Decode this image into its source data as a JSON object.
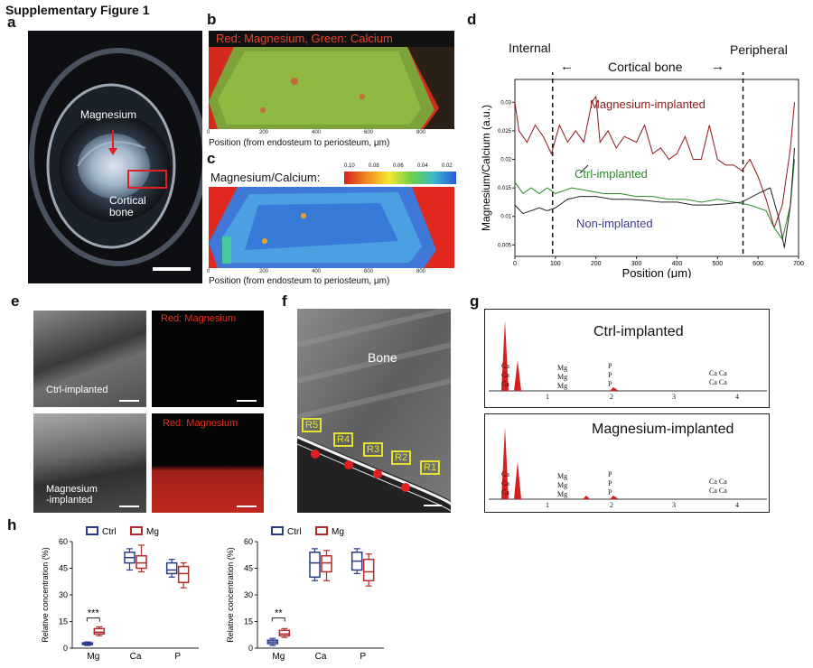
{
  "figure_title": "Supplementary Figure 1",
  "panels": {
    "a": {
      "letter": "a",
      "label_magnesium": "Magnesium",
      "label_cortical_line1": "Cortical",
      "label_cortical_line2": "bone"
    },
    "b": {
      "letter": "b",
      "header": "Red: Magnesium, Green: Calcium",
      "xaxis_label": "Position (from endosteum to periosteum, μm)",
      "ticks": [
        "0",
        "200",
        "400",
        "600",
        "800"
      ]
    },
    "c": {
      "letter": "c",
      "title": "Magnesium/Calcium:",
      "colorbar_ticks": [
        "0.10",
        "0.08",
        "0.06",
        "0.04",
        "0.02"
      ],
      "xaxis_label": "Position (from endosteum to periosteum, μm)",
      "ticks": [
        "0",
        "200",
        "400",
        "600",
        "800"
      ]
    },
    "d": {
      "letter": "d",
      "label_internal": "Internal",
      "label_cortical": "Cortical bone",
      "label_peripheral": "Peripheral",
      "arrow_left": "←",
      "arrow_right": "→"
    },
    "e": {
      "letter": "e",
      "red_magnesium_1": "Red: Magnesium",
      "red_magnesium_2": "Red: Magnesium",
      "ctrl_label": "Ctrl-implanted",
      "mg_label_line1": "Magnesium",
      "mg_label_line2": "-implanted"
    },
    "f": {
      "letter": "f",
      "bone_label": "Bone",
      "regions": [
        "R5",
        "R4",
        "R3",
        "R2",
        "R1"
      ]
    },
    "g": {
      "letter": "g",
      "top_title": "Ctrl-implanted",
      "bottom_title": "Magnesium-implanted",
      "peak_labels": {
        "ca": "Ca",
        "mg": "Mg",
        "p": "P"
      },
      "ticks": [
        "1",
        "2",
        "3",
        "4"
      ]
    },
    "h": {
      "letter": "h",
      "legend_ctrl": "Ctrl",
      "legend_mg": "Mg",
      "ylabel": "Relative concentration (%)"
    }
  },
  "chart_data": [
    {
      "type": "line",
      "panel": "d",
      "xlabel": "Position (μm)",
      "ylabel": "Magnesium/Calcium (a.u.)",
      "xlim": [
        0,
        700
      ],
      "ylim": [
        0.003,
        0.034
      ],
      "xticks": [
        "0",
        "100",
        "200",
        "300",
        "400",
        "500",
        "600",
        "700"
      ],
      "yticks": [
        "0.005",
        "0.01",
        "0.015",
        "0.02",
        "0.025",
        "0.03"
      ],
      "dashed_lines_x": [
        93,
        563
      ],
      "series": [
        {
          "name": "Magnesium-implanted",
          "color": "#8b1a1a",
          "x": [
            0,
            10,
            30,
            50,
            70,
            90,
            110,
            130,
            150,
            170,
            190,
            200,
            210,
            230,
            250,
            270,
            300,
            320,
            340,
            360,
            380,
            400,
            420,
            440,
            460,
            480,
            500,
            520,
            540,
            560,
            580,
            600,
            620,
            640,
            660,
            680,
            690
          ],
          "y": [
            0.03,
            0.025,
            0.023,
            0.026,
            0.024,
            0.021,
            0.026,
            0.023,
            0.025,
            0.023,
            0.03,
            0.031,
            0.023,
            0.025,
            0.022,
            0.024,
            0.023,
            0.026,
            0.021,
            0.022,
            0.02,
            0.021,
            0.024,
            0.02,
            0.02,
            0.026,
            0.02,
            0.019,
            0.019,
            0.018,
            0.02,
            0.017,
            0.013,
            0.008,
            0.012,
            0.022,
            0.03
          ]
        },
        {
          "name": "Ctrl-implanted",
          "color": "#2a8a2a",
          "x": [
            0,
            20,
            40,
            60,
            80,
            100,
            140,
            180,
            220,
            260,
            300,
            340,
            380,
            420,
            460,
            500,
            540,
            580,
            620,
            640,
            660,
            680,
            690
          ],
          "y": [
            0.016,
            0.014,
            0.015,
            0.014,
            0.015,
            0.014,
            0.015,
            0.0145,
            0.014,
            0.014,
            0.0135,
            0.0135,
            0.013,
            0.013,
            0.0125,
            0.013,
            0.0125,
            0.012,
            0.011,
            0.008,
            0.006,
            0.012,
            0.02
          ]
        },
        {
          "name": "Non-implanted",
          "color": "#222222",
          "x": [
            0,
            20,
            40,
            60,
            80,
            100,
            130,
            160,
            200,
            240,
            280,
            320,
            360,
            400,
            440,
            480,
            520,
            560,
            600,
            630,
            650,
            665,
            680,
            690
          ],
          "y": [
            0.012,
            0.0105,
            0.011,
            0.0115,
            0.011,
            0.0115,
            0.013,
            0.0135,
            0.0135,
            0.013,
            0.013,
            0.0128,
            0.0125,
            0.0125,
            0.012,
            0.012,
            0.0122,
            0.0125,
            0.014,
            0.015,
            0.01,
            0.0045,
            0.012,
            0.022
          ]
        }
      ],
      "annotations": [
        "Magnesium-implanted",
        "Ctrl-implanted",
        "Non-implanted"
      ]
    },
    {
      "type": "box",
      "panel": "h-left",
      "ylabel": "Relative concentration (%)",
      "ylim": [
        0,
        60
      ],
      "yticks": [
        "0",
        "15",
        "30",
        "45",
        "60"
      ],
      "categories": [
        "Mg",
        "Ca",
        "P"
      ],
      "series": [
        {
          "name": "Ctrl",
          "color": "#2a3a8c",
          "boxes": [
            [
              1.5,
              2,
              2.5,
              3,
              3.5
            ],
            [
              44,
              48,
              51,
              54,
              56
            ],
            [
              40,
              42,
              44,
              48,
              50
            ]
          ]
        },
        {
          "name": "Mg",
          "color": "#b22a2a",
          "boxes": [
            [
              7,
              8,
              9,
              11,
              12
            ],
            [
              43,
              45,
              48,
              52,
              58
            ],
            [
              34,
              37,
              42,
              46,
              48
            ]
          ]
        }
      ],
      "significance": {
        "category": "Mg",
        "label": "***"
      }
    },
    {
      "type": "box",
      "panel": "h-right",
      "ylabel": "Relative concentration (%)",
      "ylim": [
        0,
        60
      ],
      "yticks": [
        "0",
        "15",
        "30",
        "45",
        "60"
      ],
      "categories": [
        "Mg",
        "Ca",
        "P"
      ],
      "series": [
        {
          "name": "Ctrl",
          "color": "#2a3a8c",
          "boxes": [
            [
              1.5,
              2.5,
              3.5,
              4.5,
              5.5
            ],
            [
              38,
              40,
              48,
              54,
              56
            ],
            [
              42,
              44,
              49,
              54,
              56
            ]
          ]
        },
        {
          "name": "Mg",
          "color": "#b22a2a",
          "boxes": [
            [
              6,
              7,
              8,
              10,
              11
            ],
            [
              38,
              43,
              48,
              52,
              55
            ],
            [
              35,
              38,
              43,
              50,
              53
            ]
          ]
        }
      ],
      "significance": {
        "category": "Mg",
        "label": "**"
      }
    }
  ]
}
